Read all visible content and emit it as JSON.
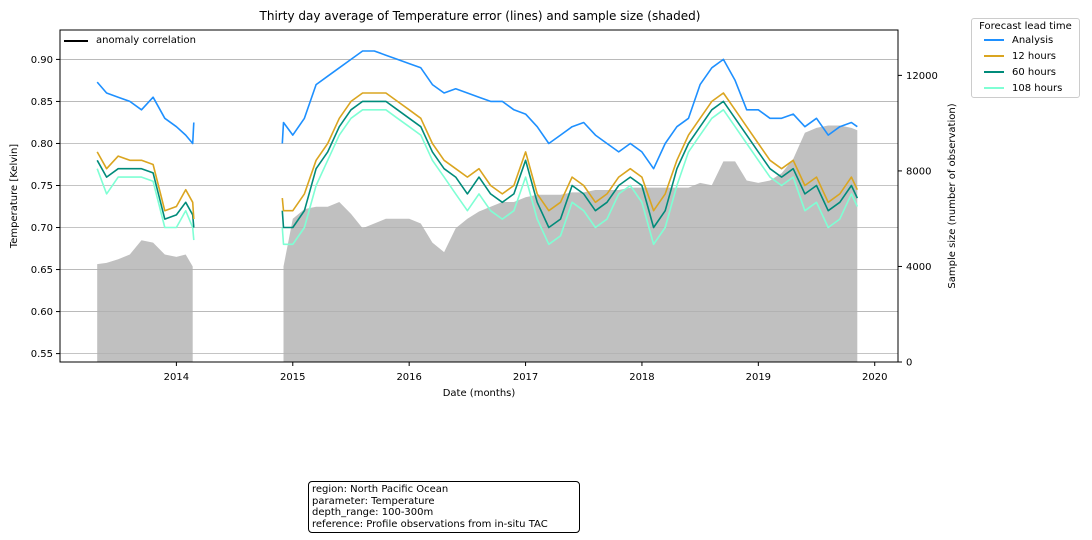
{
  "chart_data": {
    "type": "line",
    "title": "Thirty day average of Temperature error (lines) and sample size (shaded)",
    "xlabel": "Date (months)",
    "ylabel": "Temperature [Kelvin]",
    "y2label": "Sample size (number of observation)",
    "xlim": [
      2013.0,
      2020.2
    ],
    "ylim": [
      0.54,
      0.935
    ],
    "y2lim": [
      0,
      13900
    ],
    "x_ticks": [
      "2014",
      "2015",
      "2016",
      "2017",
      "2018",
      "2019",
      "2020"
    ],
    "y_ticks": [
      "0.55",
      "0.60",
      "0.65",
      "0.70",
      "0.75",
      "0.80",
      "0.85",
      "0.90"
    ],
    "y2_ticks": [
      "0",
      "4000",
      "8000",
      "12000"
    ],
    "grid": "horizontal",
    "legend_title": "Forecast lead time",
    "legend_placement": "outside-top-right",
    "line_legend": "anomaly correlation",
    "x": [
      2013.32,
      2013.4,
      2013.5,
      2013.6,
      2013.7,
      2013.8,
      2013.9,
      2014.0,
      2014.08,
      2014.14,
      2014.15,
      2014.91,
      2014.92,
      2015.0,
      2015.1,
      2015.2,
      2015.3,
      2015.4,
      2015.5,
      2015.6,
      2015.7,
      2015.8,
      2015.9,
      2016.0,
      2016.1,
      2016.2,
      2016.3,
      2016.4,
      2016.5,
      2016.6,
      2016.7,
      2016.8,
      2016.9,
      2017.0,
      2017.1,
      2017.2,
      2017.3,
      2017.4,
      2017.5,
      2017.6,
      2017.7,
      2017.8,
      2017.9,
      2018.0,
      2018.1,
      2018.2,
      2018.3,
      2018.4,
      2018.5,
      2018.6,
      2018.7,
      2018.8,
      2018.9,
      2019.0,
      2019.1,
      2019.2,
      2019.3,
      2019.4,
      2019.5,
      2019.6,
      2019.7,
      2019.8,
      2019.85
    ],
    "series": [
      {
        "name": "Analysis",
        "color": "#1e90ff",
        "values": [
          0.873,
          0.86,
          0.855,
          0.85,
          0.84,
          0.855,
          0.83,
          0.82,
          0.81,
          0.8,
          0.825,
          0.8,
          0.825,
          0.81,
          0.83,
          0.87,
          0.88,
          0.89,
          0.9,
          0.91,
          0.91,
          0.905,
          0.9,
          0.895,
          0.89,
          0.87,
          0.86,
          0.865,
          0.86,
          0.855,
          0.85,
          0.85,
          0.84,
          0.835,
          0.82,
          0.8,
          0.81,
          0.82,
          0.825,
          0.81,
          0.8,
          0.79,
          0.8,
          0.79,
          0.77,
          0.8,
          0.82,
          0.83,
          0.87,
          0.89,
          0.9,
          0.875,
          0.84,
          0.84,
          0.83,
          0.83,
          0.835,
          0.82,
          0.83,
          0.81,
          0.82,
          0.825,
          0.82
        ]
      },
      {
        "name": "12 hours",
        "color": "#daa520",
        "values": [
          0.79,
          0.77,
          0.785,
          0.78,
          0.78,
          0.775,
          0.72,
          0.725,
          0.745,
          0.73,
          0.71,
          0.735,
          0.72,
          0.72,
          0.74,
          0.78,
          0.8,
          0.83,
          0.85,
          0.86,
          0.86,
          0.86,
          0.85,
          0.84,
          0.83,
          0.8,
          0.78,
          0.77,
          0.76,
          0.77,
          0.75,
          0.74,
          0.75,
          0.79,
          0.74,
          0.72,
          0.73,
          0.76,
          0.75,
          0.73,
          0.74,
          0.76,
          0.77,
          0.76,
          0.72,
          0.74,
          0.78,
          0.81,
          0.83,
          0.85,
          0.86,
          0.84,
          0.82,
          0.8,
          0.78,
          0.77,
          0.78,
          0.75,
          0.76,
          0.73,
          0.74,
          0.76,
          0.745
        ]
      },
      {
        "name": "60 hours",
        "color": "#008b7a",
        "values": [
          0.78,
          0.76,
          0.77,
          0.77,
          0.77,
          0.765,
          0.71,
          0.715,
          0.73,
          0.715,
          0.7,
          0.72,
          0.7,
          0.7,
          0.72,
          0.77,
          0.79,
          0.82,
          0.84,
          0.85,
          0.85,
          0.85,
          0.84,
          0.83,
          0.82,
          0.79,
          0.77,
          0.76,
          0.74,
          0.76,
          0.74,
          0.73,
          0.74,
          0.78,
          0.73,
          0.7,
          0.71,
          0.75,
          0.74,
          0.72,
          0.73,
          0.75,
          0.76,
          0.75,
          0.7,
          0.72,
          0.77,
          0.8,
          0.82,
          0.84,
          0.85,
          0.83,
          0.81,
          0.79,
          0.77,
          0.76,
          0.77,
          0.74,
          0.75,
          0.72,
          0.73,
          0.75,
          0.735
        ]
      },
      {
        "name": "108 hours",
        "color": "#7fffd4",
        "values": [
          0.77,
          0.74,
          0.76,
          0.76,
          0.76,
          0.755,
          0.7,
          0.7,
          0.72,
          0.7,
          0.685,
          0.7,
          0.68,
          0.68,
          0.7,
          0.75,
          0.78,
          0.81,
          0.83,
          0.84,
          0.84,
          0.84,
          0.83,
          0.82,
          0.81,
          0.78,
          0.76,
          0.74,
          0.72,
          0.74,
          0.72,
          0.71,
          0.72,
          0.76,
          0.71,
          0.68,
          0.69,
          0.73,
          0.72,
          0.7,
          0.71,
          0.74,
          0.75,
          0.73,
          0.68,
          0.7,
          0.75,
          0.79,
          0.81,
          0.83,
          0.84,
          0.82,
          0.8,
          0.78,
          0.76,
          0.75,
          0.76,
          0.72,
          0.73,
          0.7,
          0.71,
          0.74,
          0.725
        ]
      }
    ],
    "sample_size": {
      "color": "#c0c0c0",
      "x": [
        2013.32,
        2013.4,
        2013.5,
        2013.6,
        2013.7,
        2013.8,
        2013.9,
        2014.0,
        2014.08,
        2014.14,
        2014.15,
        2014.91,
        2014.92,
        2015.0,
        2015.1,
        2015.2,
        2015.3,
        2015.4,
        2015.5,
        2015.6,
        2015.7,
        2015.8,
        2015.9,
        2016.0,
        2016.1,
        2016.2,
        2016.3,
        2016.4,
        2016.5,
        2016.6,
        2016.7,
        2016.8,
        2016.9,
        2017.0,
        2017.1,
        2017.2,
        2017.3,
        2017.4,
        2017.5,
        2017.6,
        2017.7,
        2017.8,
        2017.9,
        2018.0,
        2018.1,
        2018.2,
        2018.3,
        2018.4,
        2018.5,
        2018.6,
        2018.7,
        2018.8,
        2018.9,
        2019.0,
        2019.1,
        2019.2,
        2019.3,
        2019.4,
        2019.5,
        2019.6,
        2019.7,
        2019.8,
        2019.85
      ],
      "values": [
        4100,
        4150,
        4300,
        4500,
        5100,
        5000,
        4500,
        4400,
        4500,
        4000,
        0,
        0,
        4000,
        6000,
        6400,
        6500,
        6500,
        6700,
        6200,
        5600,
        5800,
        6000,
        6000,
        6000,
        5800,
        5000,
        4600,
        5600,
        6000,
        6300,
        6500,
        6700,
        6700,
        6900,
        7000,
        7000,
        7000,
        7100,
        7100,
        7200,
        7200,
        7200,
        7300,
        7300,
        7300,
        7300,
        7300,
        7300,
        7500,
        7400,
        8400,
        8400,
        7600,
        7500,
        7600,
        7900,
        8500,
        9600,
        9800,
        9900,
        9900,
        9800,
        9700
      ]
    }
  },
  "info": {
    "region": "region: North Pacific Ocean",
    "parameter": "parameter: Temperature",
    "depth_range": "depth_range: 100-300m",
    "reference": "reference: Profile observations from in-situ TAC"
  }
}
